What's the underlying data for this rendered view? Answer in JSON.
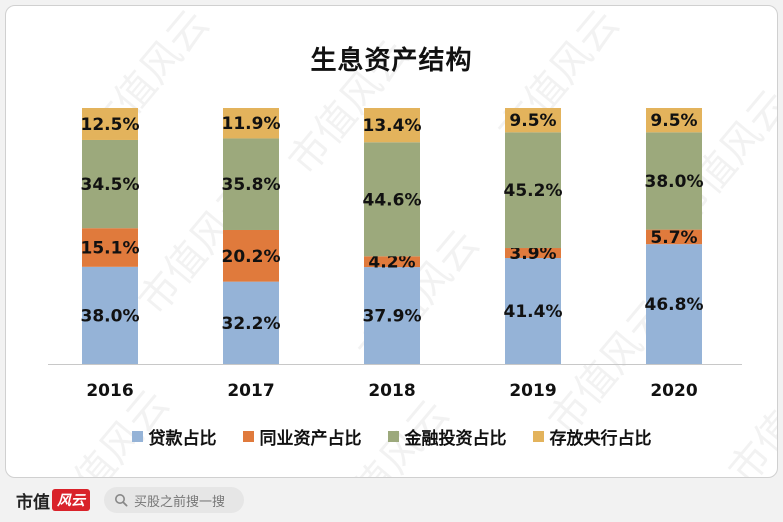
{
  "chart_data": {
    "type": "bar",
    "stacked": true,
    "title": "生息资产结构",
    "categories": [
      "2016",
      "2017",
      "2018",
      "2019",
      "2020"
    ],
    "series": [
      {
        "name": "贷款占比",
        "color": "#95b3d7",
        "values": [
          38.0,
          32.2,
          37.9,
          41.4,
          46.8
        ],
        "labels": [
          "38.0%",
          "32.2%",
          "37.9%",
          "41.4%",
          "46.8%"
        ]
      },
      {
        "name": "同业资产占比",
        "color": "#e07a3c",
        "values": [
          15.1,
          20.2,
          4.2,
          3.9,
          5.7
        ],
        "labels": [
          "15.1%",
          "20.2%",
          "4.2%",
          "3.9%",
          "5.7%"
        ]
      },
      {
        "name": "金融投资占比",
        "color": "#9ca97c",
        "values": [
          34.5,
          35.8,
          44.6,
          45.2,
          38.0
        ],
        "labels": [
          "34.5%",
          "35.8%",
          "44.6%",
          "45.2%",
          "38.0%"
        ]
      },
      {
        "name": "存放央行占比",
        "color": "#e3b35c",
        "values": [
          12.5,
          11.9,
          13.4,
          9.5,
          9.5
        ],
        "labels": [
          "12.5%",
          "11.9%",
          "13.4%",
          "9.5%",
          "9.5%"
        ]
      }
    ],
    "legend_position": "bottom",
    "grid": false
  },
  "watermark": {
    "text": "市值风云"
  },
  "footer": {
    "brand": "市值",
    "brand_mark": "风云",
    "search_placeholder": "买股之前搜一搜",
    "search_icon": "search-icon"
  }
}
